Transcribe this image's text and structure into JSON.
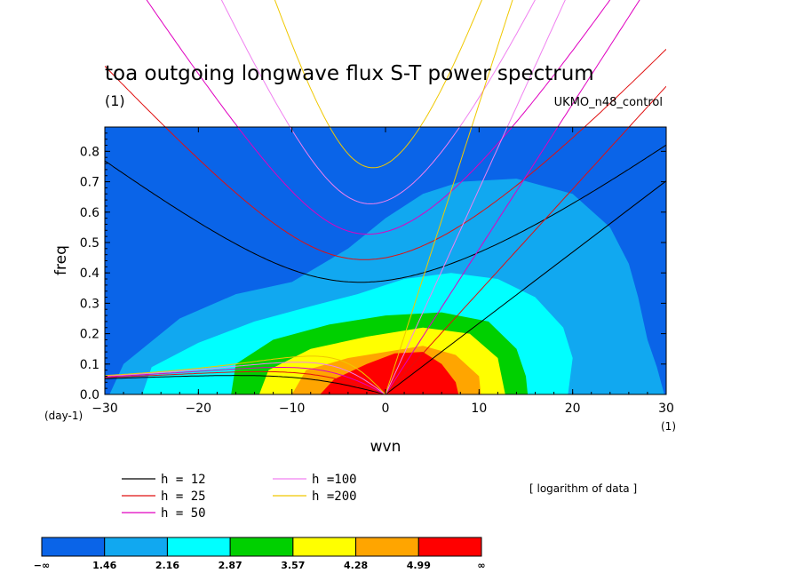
{
  "chart_data": {
    "type": "contour",
    "title": "toa outgoing longwave flux S-T power spectrum",
    "subtitle": "(1)",
    "run_label": "UKMO_n48_control",
    "xlabel": "wvn",
    "ylabel": "freq",
    "x_unit": "(1)",
    "y_unit": "(day-1)",
    "xlim": [
      -30,
      30
    ],
    "ylim": [
      0,
      0.88
    ],
    "x_ticks": [
      -30,
      -20,
      -10,
      0,
      10,
      20,
      30
    ],
    "x_tick_labels": [
      "−30",
      "−20",
      "−10",
      "0",
      "10",
      "20",
      "30"
    ],
    "y_ticks": [
      0.0,
      0.1,
      0.2,
      0.3,
      0.4,
      0.5,
      0.6,
      0.7,
      0.8
    ],
    "y_tick_labels": [
      "0.0",
      "0.1",
      "0.2",
      "0.3",
      "0.4",
      "0.5",
      "0.6",
      "0.7",
      "0.8"
    ],
    "contour_levels": [
      "−∞",
      "1.46",
      "2.16",
      "2.87",
      "3.57",
      "4.28",
      "4.99",
      "∞"
    ],
    "fill_colors": [
      "#0a64e8",
      "#11a8f0",
      "#00ffff",
      "#00d000",
      "#ffff00",
      "#ffa500",
      "#ff0000"
    ],
    "bands": [
      {
        "level": "-inf..1.46",
        "color": "#0a64e8",
        "region": "background"
      },
      {
        "level": "1.46..2.16",
        "color": "#11a8f0",
        "poly": [
          [
            -29.5,
            0
          ],
          [
            -28,
            0.1
          ],
          [
            -22,
            0.25
          ],
          [
            -16,
            0.33
          ],
          [
            -10,
            0.37
          ],
          [
            -4,
            0.48
          ],
          [
            0,
            0.58
          ],
          [
            4,
            0.66
          ],
          [
            8,
            0.7
          ],
          [
            14,
            0.71
          ],
          [
            20,
            0.66
          ],
          [
            24,
            0.55
          ],
          [
            26,
            0.43
          ],
          [
            27,
            0.32
          ],
          [
            28,
            0.18
          ],
          [
            29,
            0.09
          ],
          [
            29.8,
            0
          ]
        ]
      },
      {
        "level": "2.16..2.87",
        "color": "#00ffff",
        "poly": [
          [
            -26,
            0
          ],
          [
            -25,
            0.09
          ],
          [
            -20,
            0.17
          ],
          [
            -14,
            0.24
          ],
          [
            -8,
            0.29
          ],
          [
            -3,
            0.33
          ],
          [
            2,
            0.38
          ],
          [
            7,
            0.4
          ],
          [
            12,
            0.38
          ],
          [
            16,
            0.32
          ],
          [
            19,
            0.22
          ],
          [
            20,
            0.12
          ],
          [
            19.5,
            0
          ]
        ]
      },
      {
        "level": "2.87..3.57",
        "color": "#00d000",
        "poly": [
          [
            -16.5,
            0
          ],
          [
            -16,
            0.1
          ],
          [
            -12,
            0.18
          ],
          [
            -6,
            0.23
          ],
          [
            0,
            0.26
          ],
          [
            6,
            0.27
          ],
          [
            11,
            0.24
          ],
          [
            14,
            0.15
          ],
          [
            15,
            0.06
          ],
          [
            15.2,
            0
          ]
        ]
      },
      {
        "level": "3.57..4.28",
        "color": "#ffff00",
        "poly": [
          [
            -13.5,
            0
          ],
          [
            -12.5,
            0.08
          ],
          [
            -8,
            0.15
          ],
          [
            -2,
            0.19
          ],
          [
            4,
            0.22
          ],
          [
            9,
            0.2
          ],
          [
            12,
            0.12
          ],
          [
            12.8,
            0
          ]
        ]
      },
      {
        "level": "4.28..4.99",
        "color": "#ffa500",
        "poly": [
          [
            -10,
            0
          ],
          [
            -8.5,
            0.08
          ],
          [
            -4,
            0.12
          ],
          [
            0,
            0.14
          ],
          [
            4,
            0.16
          ],
          [
            7.5,
            0.13
          ],
          [
            10,
            0.06
          ],
          [
            10.2,
            0
          ]
        ]
      },
      {
        "level": "4.99..inf",
        "color": "#ff0000",
        "poly": [
          [
            -7,
            0
          ],
          [
            -5.5,
            0.05
          ],
          [
            -2,
            0.1
          ],
          [
            1,
            0.135
          ],
          [
            4,
            0.14
          ],
          [
            6,
            0.1
          ],
          [
            7.5,
            0.04
          ],
          [
            7.8,
            0
          ]
        ]
      }
    ],
    "series": [
      {
        "name": "h = 12",
        "h": 12,
        "color": "#000000"
      },
      {
        "name": "h = 25",
        "h": 25,
        "color": "#e01010"
      },
      {
        "name": "h = 50",
        "h": 50,
        "color": "#e000c0"
      },
      {
        "name": "h =100",
        "h": 100,
        "color": "#f080f0"
      },
      {
        "name": "h =200",
        "h": 200,
        "color": "#f0c800"
      }
    ],
    "series_kinds": [
      "kelvin",
      "equatorial-rossby",
      "inertia-gravity"
    ],
    "colorbar_note": "[ logarithm of data ]"
  }
}
